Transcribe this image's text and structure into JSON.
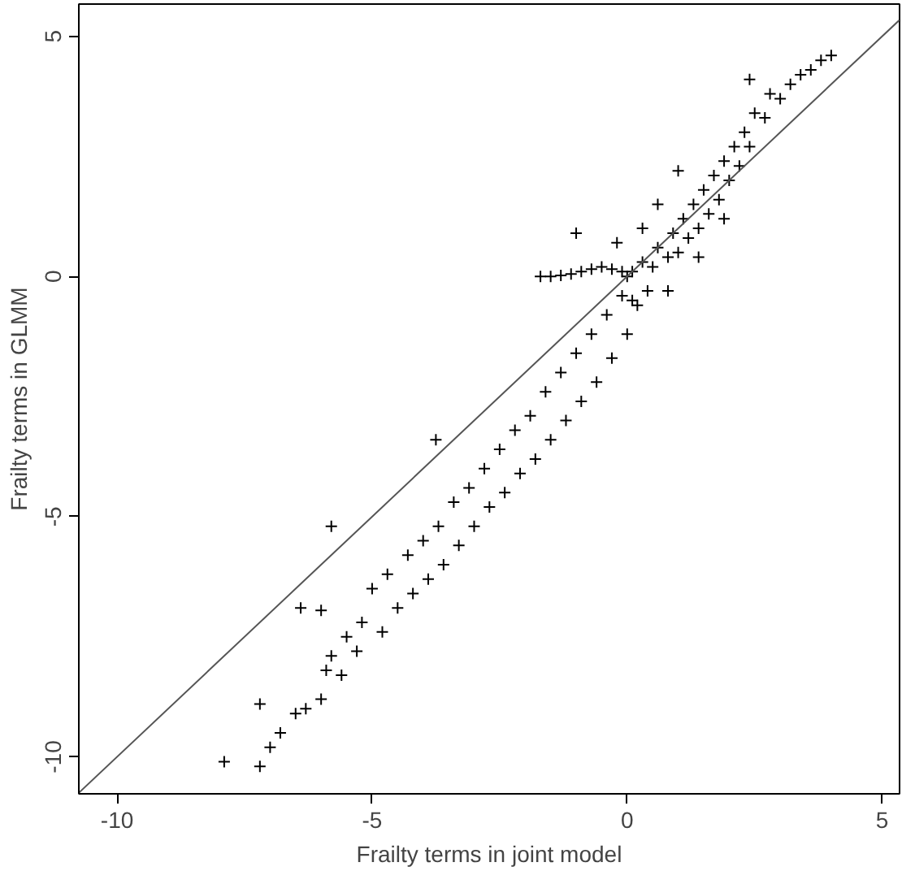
{
  "chart_data": {
    "type": "scatter",
    "xlabel": "Frailty terms in joint model",
    "ylabel": "Frailty terms in GLMM",
    "xlim": [
      -10.75,
      5.34
    ],
    "ylim": [
      -10.77,
      5.67
    ],
    "xticks": [
      -10,
      -5,
      0,
      5
    ],
    "yticks": [
      -10,
      -5,
      0,
      5
    ],
    "grid": false,
    "series": [
      {
        "color": "#000000",
        "marker": "cross",
        "x": [
          -7.9,
          -7.2,
          -7.2,
          -7.0,
          -6.8,
          -6.5,
          -6.3,
          -6.0,
          -5.9,
          -5.8,
          -5.6,
          -5.5,
          -5.3,
          -6.0,
          -5.2,
          -5.0,
          -4.8,
          -4.7,
          -4.5,
          -4.3,
          -4.2,
          -4.0,
          -3.9,
          -3.7,
          -3.6,
          -3.4,
          -3.3,
          -3.1,
          -3.0,
          -2.8,
          -2.7,
          -2.5,
          -2.4,
          -2.2,
          -2.1,
          -1.9,
          -1.8,
          -1.6,
          -1.5,
          -1.3,
          -1.2,
          -1.0,
          -0.9,
          -0.7,
          -0.6,
          -0.4,
          -0.3,
          -0.1,
          0.0,
          0.2,
          0.4,
          -3.75,
          -5.8,
          -6.4,
          -1.7,
          -1.5,
          -1.3,
          -1.1,
          -0.9,
          -0.7,
          -0.5,
          -0.3,
          -0.1,
          0.0,
          0.1,
          0.3,
          0.5,
          0.6,
          0.8,
          0.9,
          1.0,
          1.1,
          1.2,
          1.3,
          1.4,
          1.5,
          1.6,
          1.7,
          1.8,
          1.9,
          2.0,
          2.1,
          2.2,
          2.3,
          2.4,
          2.5,
          2.7,
          2.8,
          3.0,
          3.2,
          3.4,
          3.6,
          3.8,
          4.0,
          2.4,
          0.3,
          0.6,
          1.0,
          -0.2,
          0.1,
          0.8,
          1.4,
          1.9,
          -1.0
        ],
        "values": [
          -10.1,
          -10.2,
          -8.9,
          -9.8,
          -9.5,
          -9.1,
          -9.0,
          -8.8,
          -8.2,
          -7.9,
          -8.3,
          -7.5,
          -7.8,
          -6.95,
          -7.2,
          -6.5,
          -7.4,
          -6.2,
          -6.9,
          -5.8,
          -6.6,
          -5.5,
          -6.3,
          -5.2,
          -6.0,
          -4.7,
          -5.6,
          -4.4,
          -5.2,
          -4.0,
          -4.8,
          -3.6,
          -4.5,
          -3.2,
          -4.1,
          -2.9,
          -3.8,
          -2.4,
          -3.4,
          -2.0,
          -3.0,
          -1.6,
          -2.6,
          -1.2,
          -2.2,
          -0.8,
          -1.7,
          -0.4,
          -1.2,
          -0.6,
          -0.3,
          -3.4,
          -5.2,
          -6.9,
          0.0,
          0.0,
          0.02,
          0.05,
          0.1,
          0.15,
          0.2,
          0.15,
          0.1,
          0.0,
          0.1,
          0.3,
          0.2,
          0.6,
          0.4,
          0.9,
          0.5,
          1.2,
          0.8,
          1.5,
          1.0,
          1.8,
          1.3,
          2.1,
          1.6,
          2.4,
          2.0,
          2.7,
          2.3,
          3.0,
          2.7,
          3.4,
          3.3,
          3.8,
          3.7,
          4.0,
          4.2,
          4.3,
          4.5,
          4.6,
          4.1,
          1.0,
          1.5,
          2.2,
          0.7,
          -0.5,
          -0.3,
          0.4,
          1.2,
          0.9
        ]
      },
      {
        "type": "line",
        "color": "#555555",
        "x": [
          -10.75,
          5.34
        ],
        "values": [
          -10.75,
          5.34
        ]
      }
    ]
  }
}
